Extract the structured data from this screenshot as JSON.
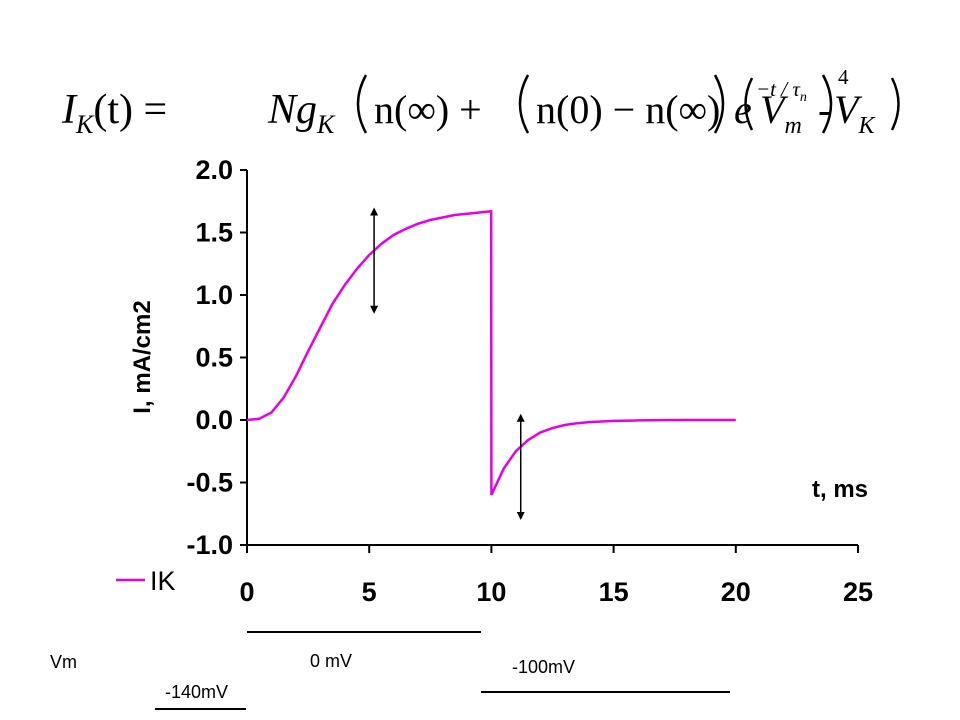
{
  "equation": {
    "lhs": "I",
    "lhs_sub": "K",
    "lhs_arg": "(t) = ",
    "n_symbol": "N",
    "g_symbol": "g",
    "g_sub": "K",
    "term1": "n(∞) + ",
    "term2": "n(0) − n(∞)",
    "exp_base": "e",
    "exp_power": "−t / τ",
    "exp_power_sub": "n",
    "outer_power": "4",
    "vm": "V",
    "vm_sub": "m",
    "minus": "-",
    "vk": "V",
    "vk_sub": "K"
  },
  "chart_data": {
    "type": "line",
    "xlabel": "t, ms",
    "ylabel": "I, mA/cm2",
    "xlim": [
      0,
      25
    ],
    "ylim": [
      -1.0,
      2.0
    ],
    "x_ticks": [
      "0",
      "5",
      "10",
      "15",
      "20",
      "25"
    ],
    "y_ticks": [
      "-1.0",
      "-0.5",
      "0.0",
      "0.5",
      "1.0",
      "1.5",
      "2.0"
    ],
    "grid": false,
    "legend_position": "bottom-left",
    "series": [
      {
        "name": "IK",
        "color": "#e600e6",
        "x": [
          0,
          0.5,
          1,
          1.5,
          2,
          2.5,
          3,
          3.5,
          4,
          4.5,
          5,
          5.5,
          6,
          6.5,
          7,
          7.5,
          8,
          8.5,
          9,
          9.5,
          9.99,
          10,
          10.5,
          11,
          11.5,
          12,
          12.5,
          13,
          13.5,
          14,
          15,
          16,
          17,
          18,
          19,
          20
        ],
        "y": [
          0.0,
          0.01,
          0.06,
          0.18,
          0.35,
          0.55,
          0.74,
          0.93,
          1.08,
          1.21,
          1.32,
          1.41,
          1.48,
          1.53,
          1.57,
          1.6,
          1.62,
          1.64,
          1.65,
          1.66,
          1.67,
          -0.6,
          -0.39,
          -0.25,
          -0.16,
          -0.1,
          -0.065,
          -0.04,
          -0.026,
          -0.017,
          -0.007,
          -0.003,
          -0.001,
          0.0,
          0.0,
          0.0
        ]
      }
    ],
    "annotations": [
      {
        "type": "double-arrow",
        "x": 5.2,
        "y_from": 0.85,
        "y_to": 1.7
      },
      {
        "type": "double-arrow",
        "x": 11.2,
        "y_from": -0.8,
        "y_to": 0.05
      }
    ]
  },
  "protocol": {
    "label": "Vm",
    "hold_label": "-140mV",
    "step_label": "0 mV",
    "post_label": "-100mV"
  }
}
